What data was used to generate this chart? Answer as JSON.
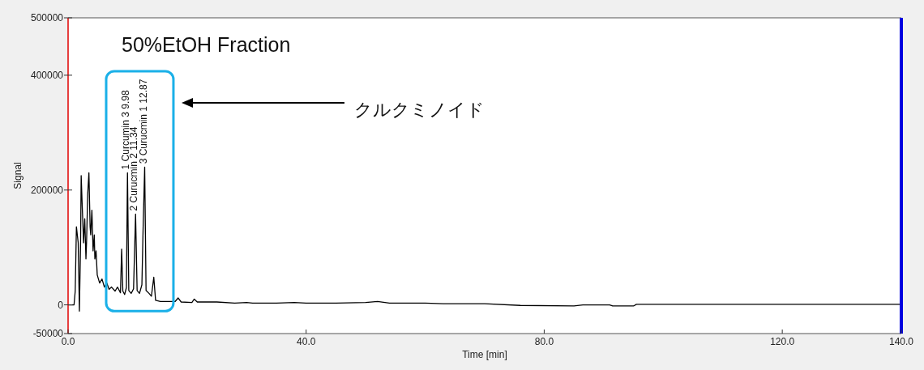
{
  "chart_data": {
    "type": "line",
    "title": "50%EtOH Fraction",
    "xlabel": "Time [min]",
    "ylabel": "Signal",
    "xlim": [
      0,
      140
    ],
    "xticks": [
      {
        "value": 0,
        "label": "0.0"
      },
      {
        "value": 40,
        "label": "40.0"
      },
      {
        "value": 80,
        "label": "80.0"
      },
      {
        "value": 120,
        "label": "120.0"
      },
      {
        "value": 140,
        "label": "140.0"
      }
    ],
    "ylim": [
      -50000,
      500000
    ],
    "yticks": [
      -50000,
      0,
      200000,
      400000,
      500000
    ],
    "grid": false,
    "marker": "none",
    "line_style": "solid",
    "series": [
      {
        "color": "#000000",
        "x": [
          0,
          1.0,
          1.2,
          1.4,
          1.7,
          1.9,
          2.1,
          2.2,
          2.4,
          2.6,
          2.8,
          3.0,
          3.1,
          3.3,
          3.5,
          3.7,
          3.8,
          4.0,
          4.2,
          4.4,
          4.5,
          4.7,
          4.9,
          5.3,
          5.7,
          6.1,
          6.5,
          6.9,
          7.3,
          7.9,
          8.3,
          8.8,
          9.0,
          9.2,
          9.5,
          9.8,
          9.98,
          10.2,
          10.6,
          11.0,
          11.34,
          11.6,
          12.0,
          12.4,
          12.6,
          12.87,
          13.1,
          13.6,
          14.0,
          14.4,
          14.7,
          15.5,
          18.0,
          18.5,
          19.0,
          20.8,
          21.2,
          21.7,
          25,
          28,
          30,
          31,
          35,
          38,
          40,
          45,
          50,
          52,
          54,
          60,
          63,
          65,
          70,
          76,
          85,
          86.5,
          91,
          91.5,
          95,
          95.5,
          120,
          140
        ],
        "values": [
          0,
          0,
          24000,
          136000,
          108000,
          -11000,
          108000,
          225000,
          165000,
          108000,
          150000,
          80000,
          108000,
          193000,
          230000,
          136000,
          122000,
          165000,
          94000,
          122000,
          80000,
          94000,
          52000,
          38000,
          45000,
          31000,
          38000,
          27000,
          31000,
          24000,
          31000,
          21000,
          97000,
          24000,
          18000,
          30000,
          230000,
          25000,
          20000,
          28000,
          158000,
          25000,
          20000,
          35000,
          130000,
          240000,
          25000,
          20000,
          15000,
          48000,
          8000,
          6000,
          6000,
          12000,
          5000,
          4000,
          10000,
          5000,
          5000,
          3000,
          4000,
          3000,
          3000,
          4000,
          3000,
          3000,
          4000,
          6000,
          3000,
          3000,
          2000,
          2000,
          2000,
          -1000,
          -2000,
          0,
          0,
          -2000,
          -2000,
          1000,
          1000,
          1000
        ]
      }
    ],
    "annotations": [
      {
        "text": "1 Curcumin 3 9.98",
        "x": 9.98,
        "y": 230000
      },
      {
        "text": "2 Curucmin 2 11.34",
        "x": 11.34,
        "y": 158000
      },
      {
        "text": "3 Curucmin 1 12.87",
        "x": 12.87,
        "y": 240000
      },
      "クルクミノイド"
    ]
  }
}
